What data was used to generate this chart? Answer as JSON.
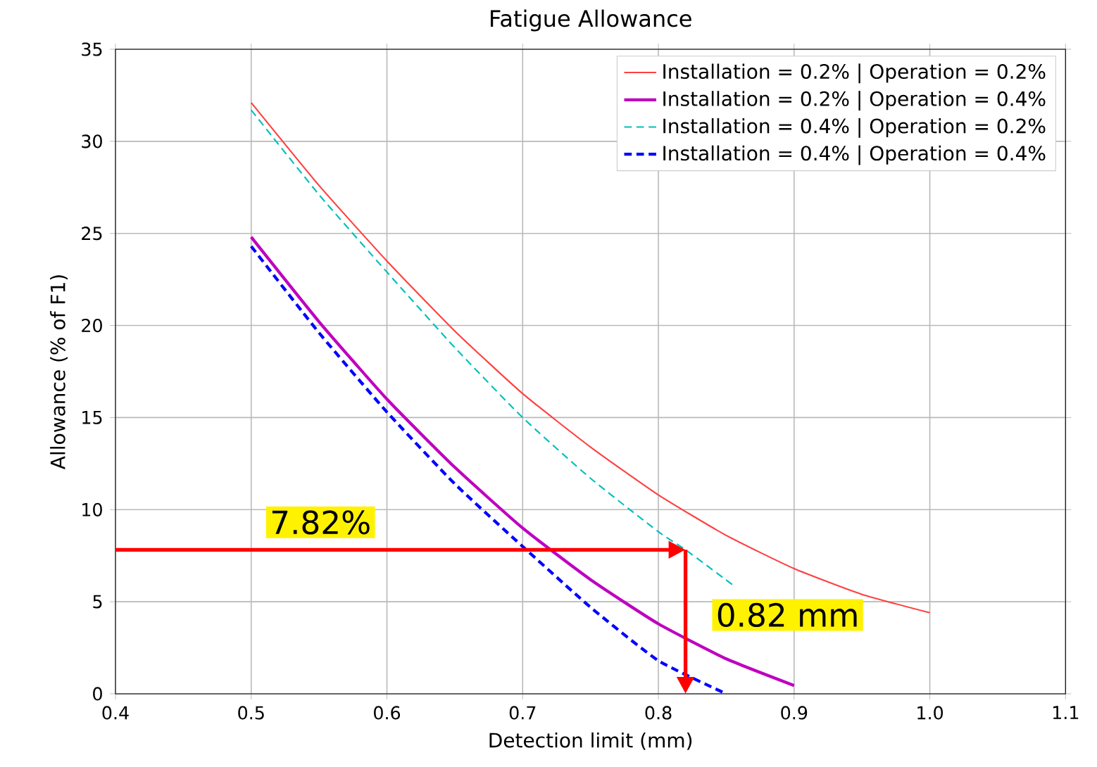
{
  "chart_data": {
    "type": "line",
    "title": "Fatigue Allowance",
    "xlabel": "Detection limit (mm)",
    "ylabel": "Allowance (% of F1)",
    "xlim": [
      0.4,
      1.1
    ],
    "xticks": [
      0.4,
      0.5,
      0.6,
      0.7,
      0.8,
      0.9,
      {
        "value": 1.0,
        "label": "1.0"
      },
      1.1
    ],
    "ylim": [
      0,
      35
    ],
    "yticks": [
      0,
      5,
      10,
      15,
      20,
      25,
      30,
      35
    ],
    "grid": true,
    "legend": "top right",
    "series": [
      {
        "name": "Installation = 0.2% | Operation = 0.2%",
        "color": "#ff4040",
        "line_style": "solid",
        "x": [
          0.5,
          0.55,
          0.6,
          0.65,
          0.7,
          0.75,
          0.8,
          0.85,
          0.9,
          0.95,
          1.0
        ],
        "values": [
          32.1,
          27.6,
          23.5,
          19.7,
          16.3,
          13.4,
          10.8,
          8.6,
          6.8,
          5.4,
          4.4
        ]
      },
      {
        "name": "Installation = 0.2% | Operation = 0.4%",
        "color": "#bf00bf",
        "line_style": "solid",
        "x": [
          0.5,
          0.55,
          0.6,
          0.65,
          0.7,
          0.75,
          0.8,
          0.85,
          0.9
        ],
        "values": [
          24.8,
          20.2,
          16.0,
          12.3,
          9.0,
          6.2,
          3.8,
          1.9,
          0.45
        ]
      },
      {
        "name": "Installation = 0.4% | Operation = 0.2%",
        "color": "#00bfbf",
        "line_style": "dashed",
        "x": [
          0.5,
          0.55,
          0.6,
          0.65,
          0.7,
          0.75,
          0.8,
          0.82,
          0.855
        ],
        "values": [
          31.7,
          27.1,
          22.9,
          18.8,
          15.0,
          11.7,
          8.8,
          7.82,
          5.9
        ]
      },
      {
        "name": "Installation = 0.4% | Operation = 0.4%",
        "color": "#0000ff",
        "line_style": "dashed",
        "x": [
          0.5,
          0.55,
          0.6,
          0.65,
          0.7,
          0.75,
          0.8,
          0.85
        ],
        "values": [
          24.3,
          19.6,
          15.3,
          11.4,
          8.0,
          4.7,
          1.8,
          0.0
        ]
      }
    ],
    "ref_lines": [
      {
        "axis": "y",
        "value": 7.82,
        "label": "7.82%",
        "color": "#ff0000"
      },
      {
        "axis": "x",
        "value": 0.82,
        "label": "0.82 mm",
        "color": "#ff0000"
      }
    ]
  }
}
